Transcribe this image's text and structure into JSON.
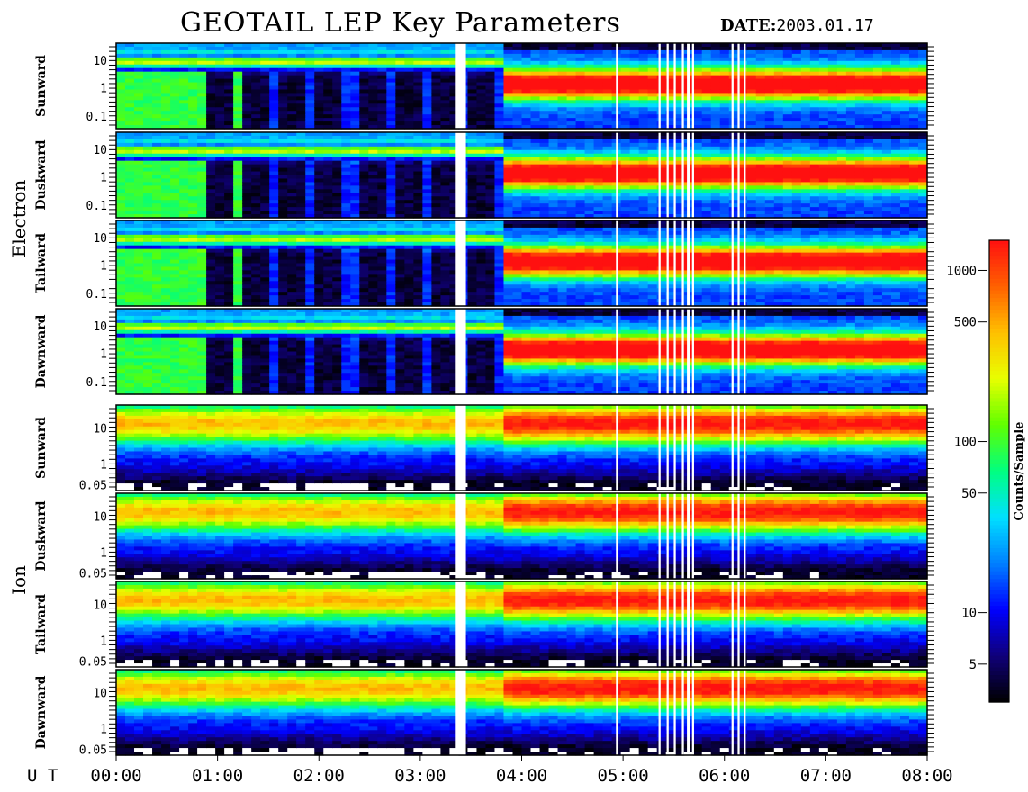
{
  "title": "GEOTAIL LEP Key Parameters",
  "date_label": "DATE:",
  "date_value": "2003.01.17",
  "ut_label": "U T",
  "colors": {
    "background": "#ffffff",
    "frame": "#000000",
    "gap": "#ffffff"
  },
  "chart_data": {
    "type": "heatmap",
    "x_ticks": [
      "00:00",
      "01:00",
      "02:00",
      "03:00",
      "04:00",
      "05:00",
      "06:00",
      "07:00",
      "08:00"
    ],
    "x_range_hours": [
      0,
      8
    ],
    "data_gap_hours": [
      [
        3.35,
        3.45
      ],
      [
        4.93,
        4.94
      ],
      [
        5.35,
        5.37
      ],
      [
        5.43,
        5.45
      ],
      [
        5.5,
        5.52
      ],
      [
        5.58,
        5.6
      ],
      [
        5.63,
        5.66
      ],
      [
        5.68,
        5.7
      ],
      [
        6.07,
        6.09
      ],
      [
        6.13,
        6.15
      ],
      [
        6.19,
        6.21
      ]
    ],
    "groups": [
      {
        "species": "Electron",
        "y_ticks": [
          "10",
          "1",
          "0.1"
        ],
        "panels": [
          "Sunward",
          "Duskward",
          "Tailward",
          "Dawnward"
        ]
      },
      {
        "species": "Ion",
        "y_ticks": [
          "10",
          "1",
          "0.05"
        ],
        "panels": [
          "Sunward",
          "Duskward",
          "Tailward",
          "Dawnward"
        ]
      }
    ],
    "colorbar": {
      "label": "Counts/Sample",
      "scale": "log",
      "range": [
        3,
        1500
      ],
      "ticks": [
        "1000",
        "500",
        "100",
        "50",
        "10",
        "5"
      ],
      "tick_values": [
        1000,
        500,
        100,
        50,
        10,
        5
      ],
      "colormap": [
        "#000000",
        "#10007a",
        "#0000ff",
        "#0080ff",
        "#00e0ff",
        "#00ff80",
        "#60ff00",
        "#e8ff00",
        "#ffc000",
        "#ff6000",
        "#ff1010"
      ]
    },
    "regimes": [
      {
        "hours": [
          0.0,
          3.85
        ],
        "electron": "low-count (<50), bright bands near 10 keV",
        "ion": "moderate (~100-300), high energy band"
      },
      {
        "hours": [
          3.85,
          8.0
        ],
        "electron": "high-count (~500-1000) near 1-3 keV",
        "ion": "high-count (~500-1000) near 10 keV"
      }
    ]
  }
}
